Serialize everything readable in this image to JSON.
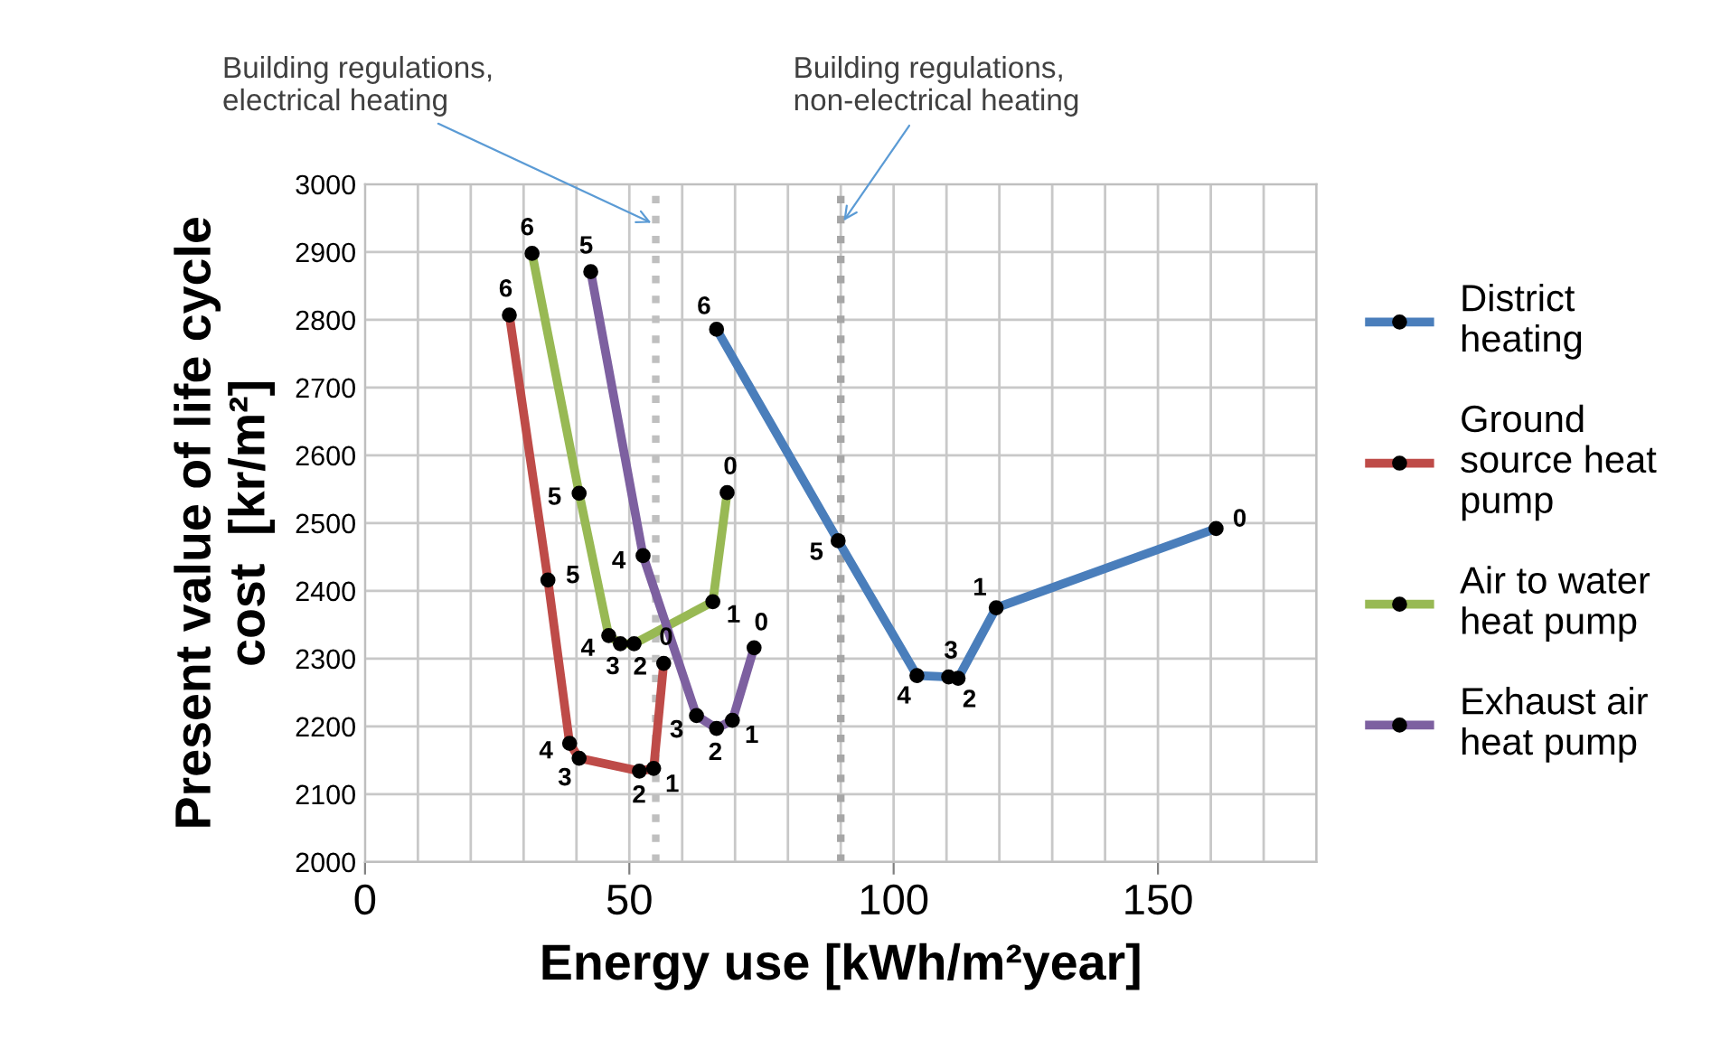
{
  "chart_data": {
    "type": "line",
    "xlabel": "Energy use [kWh/m²year]",
    "ylabel": "Present value of life cycle\ncost  [kr/m²]",
    "xlim": [
      0,
      180
    ],
    "ylim": [
      2000,
      3000
    ],
    "xticks": [
      0,
      {
        "value": 10,
        "label": null
      },
      {
        "value": 20,
        "label": null
      },
      {
        "value": 30,
        "label": null
      },
      {
        "value": 40,
        "label": null
      },
      50,
      {
        "value": 60,
        "label": null
      },
      {
        "value": 70,
        "label": null
      },
      {
        "value": 80,
        "label": null
      },
      {
        "value": 90,
        "label": null
      },
      100,
      {
        "value": 110,
        "label": null
      },
      {
        "value": 120,
        "label": null
      },
      {
        "value": 130,
        "label": null
      },
      {
        "value": 140,
        "label": null
      },
      150,
      {
        "value": 160,
        "label": null
      },
      {
        "value": 170,
        "label": null
      },
      {
        "value": 180,
        "label": null
      }
    ],
    "yticks": [
      2000,
      2100,
      2200,
      2300,
      2400,
      2500,
      2600,
      2700,
      2800,
      2900,
      3000
    ],
    "grid": true,
    "legend": "right",
    "marker": "circle",
    "line_style": "solid",
    "series": [
      {
        "name": "District\nheating",
        "color": "#4a7ebb",
        "x": [
          66.5,
          89.5,
          104.4,
          110.4,
          112.2,
          119.4,
          161
        ],
        "values": [
          2786,
          2474,
          2275,
          2273,
          2271,
          2375,
          2492
        ]
      },
      {
        "name": "Ground\nsource heat\npump",
        "color": "#be4b48",
        "x": [
          27.3,
          34.6,
          38.7,
          40.5,
          51.9,
          54.6,
          56.5
        ],
        "values": [
          2807,
          2416,
          2175,
          2153,
          2134,
          2138,
          2293
        ]
      },
      {
        "name": "Air to water\nheat pump",
        "color": "#98b954",
        "x": [
          31.6,
          40.5,
          46.1,
          48.3,
          50.9,
          65.8,
          68.5
        ],
        "values": [
          2898,
          2544,
          2334,
          2322,
          2322,
          2384,
          2545
        ]
      },
      {
        "name": "Exhaust air\nheat pump",
        "color": "#7d60a0",
        "x": [
          42.7,
          52.6,
          62.7,
          66.5,
          69.5,
          73.6
        ],
        "values": [
          2871,
          2452,
          2216,
          2197,
          2209,
          2316
        ]
      }
    ],
    "ref_lines": [
      {
        "axis": "x",
        "value": 55,
        "label": "Building regulations,\nelectrical heating",
        "color": "#bfbfbf",
        "line_style": "dotted"
      },
      {
        "axis": "x",
        "value": 90,
        "label": "Building regulations,\nnon-electrical heating",
        "color": "#a6a6a6",
        "line_style": "dotted"
      }
    ],
    "annotations": [
      {
        "text": "6",
        "x": 66.5,
        "y": 2786
      },
      {
        "text": "5",
        "x": 89.5,
        "y": 2474
      },
      {
        "text": "4",
        "x": 104.4,
        "y": 2275
      },
      {
        "text": "3",
        "x": 110.4,
        "y": 2273
      },
      {
        "text": "2",
        "x": 112.2,
        "y": 2271
      },
      {
        "text": "1",
        "x": 119.4,
        "y": 2375
      },
      {
        "text": "0",
        "x": 161,
        "y": 2492
      },
      {
        "text": "6",
        "x": 27.3,
        "y": 2807
      },
      {
        "text": "5",
        "x": 34.6,
        "y": 2416
      },
      {
        "text": "4",
        "x": 38.7,
        "y": 2175
      },
      {
        "text": "3",
        "x": 40.5,
        "y": 2153
      },
      {
        "text": "2",
        "x": 51.9,
        "y": 2134
      },
      {
        "text": "1",
        "x": 54.6,
        "y": 2138
      },
      {
        "text": "0",
        "x": 56.5,
        "y": 2293
      },
      {
        "text": "6",
        "x": 31.6,
        "y": 2898
      },
      {
        "text": "5",
        "x": 40.5,
        "y": 2544
      },
      {
        "text": "4",
        "x": 46.1,
        "y": 2334
      },
      {
        "text": "3",
        "x": 48.3,
        "y": 2322
      },
      {
        "text": "2",
        "x": 50.9,
        "y": 2322
      },
      {
        "text": "1",
        "x": 65.8,
        "y": 2384
      },
      {
        "text": "0",
        "x": 68.5,
        "y": 2545
      },
      {
        "text": "5",
        "x": 42.7,
        "y": 2871
      },
      {
        "text": "4",
        "x": 52.6,
        "y": 2452
      },
      {
        "text": "3",
        "x": 62.7,
        "y": 2216
      },
      {
        "text": "2",
        "x": 66.5,
        "y": 2197
      },
      {
        "text": "1",
        "x": 69.5,
        "y": 2209
      },
      {
        "text": "0",
        "x": 73.6,
        "y": 2316
      }
    ]
  }
}
